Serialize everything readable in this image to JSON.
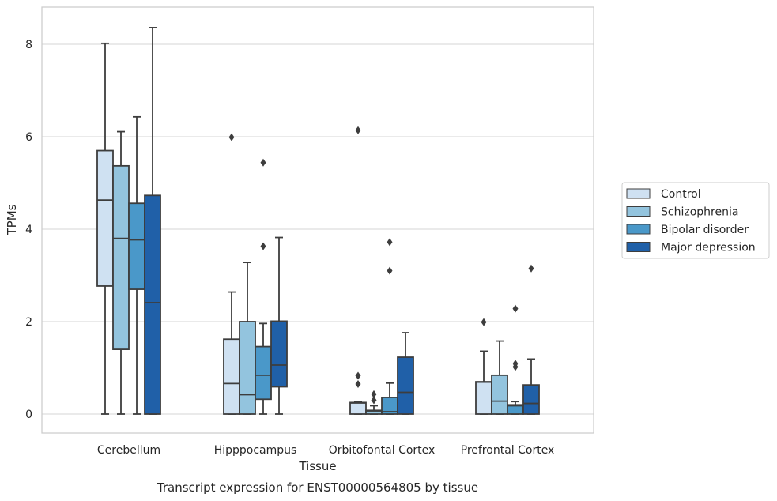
{
  "chart_data": {
    "type": "box",
    "title": "",
    "caption": "Transcript expression for ENST00000564805 by tissue",
    "xlabel": "Tissue",
    "ylabel": "TPMs",
    "ylim": [
      -0.4,
      8.8
    ],
    "yticks": [
      0,
      2,
      4,
      6,
      8
    ],
    "grid": "horizontal",
    "legend_position": "right",
    "categories": [
      "Cerebellum",
      "Hipppocampus",
      "Orbitofontal Cortex",
      "Prefrontal Cortex"
    ],
    "series": [
      {
        "name": "Control",
        "color": "#cfe1f2",
        "boxes": [
          {
            "whislo": 0,
            "q1": 2.77,
            "med": 4.63,
            "q3": 5.7,
            "whishi": 8.02,
            "fliers": []
          },
          {
            "whislo": 0,
            "q1": 0,
            "med": 0.66,
            "q3": 1.62,
            "whishi": 2.64,
            "fliers": [
              5.99
            ]
          },
          {
            "whislo": 0,
            "q1": 0,
            "med": 0.24,
            "q3": 0.25,
            "whishi": 0.26,
            "fliers": [
              0.65,
              0.83,
              6.14
            ]
          },
          {
            "whislo": 0,
            "q1": 0,
            "med": 0.69,
            "q3": 0.7,
            "whishi": 1.36,
            "fliers": [
              1.99
            ]
          }
        ]
      },
      {
        "name": "Schizophrenia",
        "color": "#93c4de",
        "boxes": [
          {
            "whislo": 0,
            "q1": 1.4,
            "med": 3.8,
            "q3": 5.37,
            "whishi": 6.11,
            "fliers": []
          },
          {
            "whislo": 0,
            "q1": 0,
            "med": 0.42,
            "q3": 2.0,
            "whishi": 3.28,
            "fliers": []
          },
          {
            "whislo": 0,
            "q1": 0,
            "med": 0.05,
            "q3": 0.08,
            "whishi": 0.18,
            "fliers": [
              0.3,
              0.43
            ]
          },
          {
            "whislo": 0,
            "q1": 0,
            "med": 0.28,
            "q3": 0.84,
            "whishi": 1.58,
            "fliers": []
          }
        ]
      },
      {
        "name": "Bipolar disorder",
        "color": "#4a98c9",
        "boxes": [
          {
            "whislo": 0,
            "q1": 2.7,
            "med": 3.77,
            "q3": 4.56,
            "whishi": 6.43,
            "fliers": []
          },
          {
            "whislo": 0,
            "q1": 0.32,
            "med": 0.84,
            "q3": 1.46,
            "whishi": 1.96,
            "fliers": [
              3.63,
              5.44
            ]
          },
          {
            "whislo": 0,
            "q1": 0,
            "med": 0.05,
            "q3": 0.36,
            "whishi": 0.67,
            "fliers": [
              3.1,
              3.72
            ]
          },
          {
            "whislo": 0,
            "q1": 0,
            "med": 0.18,
            "q3": 0.2,
            "whishi": 0.27,
            "fliers": [
              1.02,
              1.09,
              2.28
            ]
          }
        ]
      },
      {
        "name": "Major depression",
        "color": "#2060a8",
        "boxes": [
          {
            "whislo": 0,
            "q1": 0,
            "med": 2.41,
            "q3": 4.73,
            "whishi": 8.36,
            "fliers": []
          },
          {
            "whislo": 0,
            "q1": 0.59,
            "med": 1.06,
            "q3": 2.01,
            "whishi": 3.82,
            "fliers": []
          },
          {
            "whislo": 0,
            "q1": 0,
            "med": 0.47,
            "q3": 1.23,
            "whishi": 1.76,
            "fliers": []
          },
          {
            "whislo": 0,
            "q1": 0,
            "med": 0.23,
            "q3": 0.63,
            "whishi": 1.19,
            "fliers": [
              3.15
            ]
          }
        ]
      }
    ]
  }
}
